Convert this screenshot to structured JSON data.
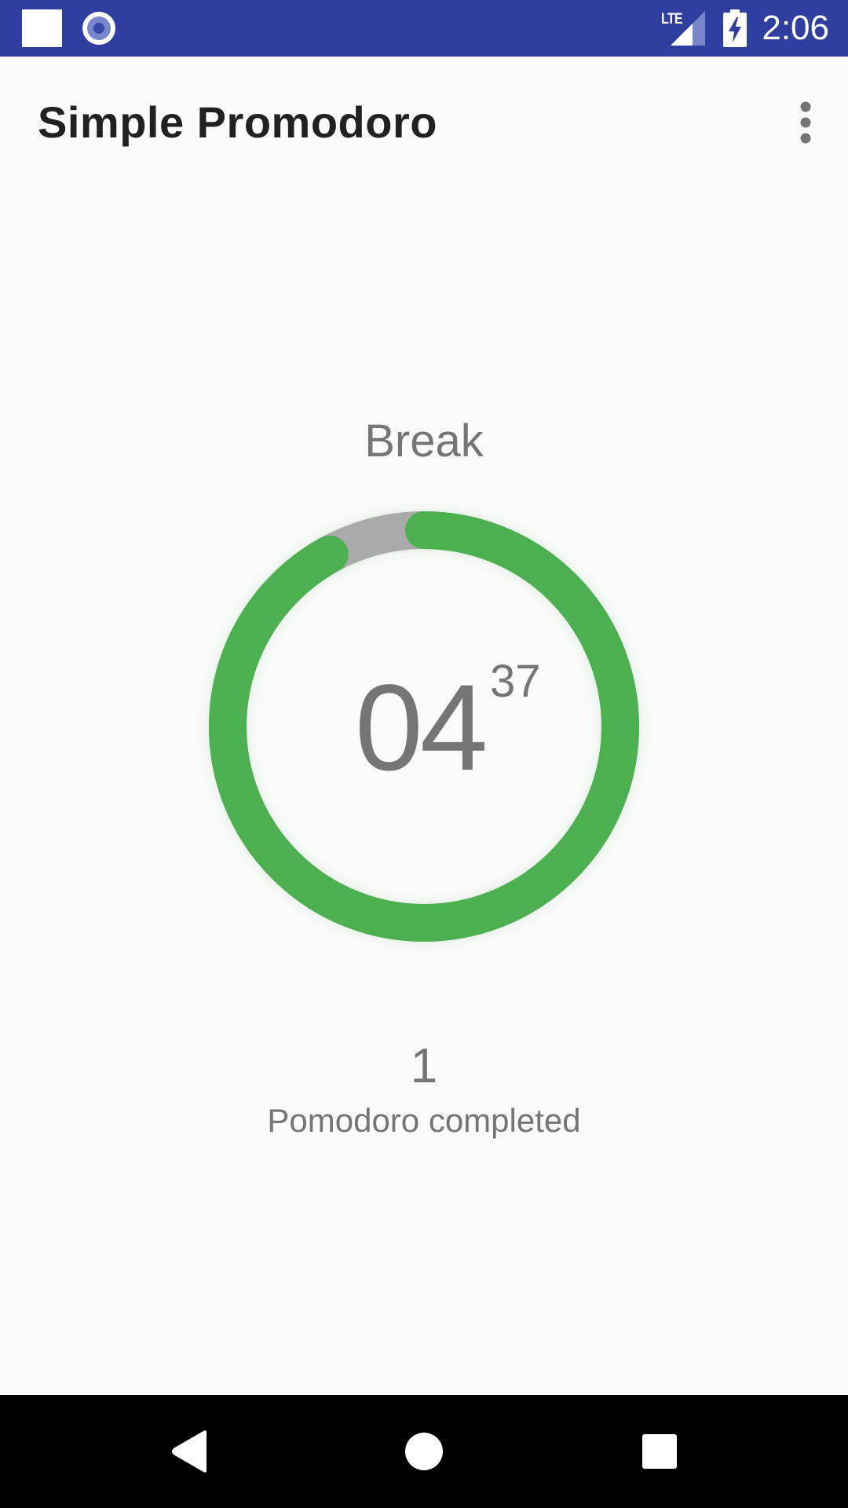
{
  "status_bar": {
    "network": "LTE",
    "time": "2:06",
    "background": "#303f9f",
    "icons": [
      "notification-square-icon",
      "recording-circle-icon",
      "lte-signal-icon",
      "battery-charging-icon"
    ]
  },
  "app_bar": {
    "title": "Simple Promodoro",
    "menu_icon": "more-vert-icon"
  },
  "timer": {
    "phase": "Break",
    "minutes": "04",
    "seconds": "37",
    "progress_fraction": 0.92,
    "ring_color": "#4caf50",
    "track_color": "#aaaaaa"
  },
  "stats": {
    "completed_count": "1",
    "completed_label": "Pomodoro completed"
  },
  "nav_bar": {
    "buttons": [
      "back-icon",
      "home-icon",
      "recents-icon"
    ]
  },
  "colors": {
    "background": "#fafafa",
    "text_primary": "#212121",
    "text_secondary": "#757575",
    "accent": "#4caf50"
  }
}
